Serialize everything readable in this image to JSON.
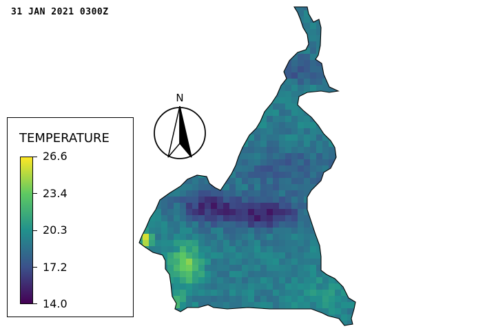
{
  "timestamp": "31 JAN 2021 0300Z",
  "legend": {
    "title": "TEMPERATURE",
    "ticks": [
      "26.6",
      "23.4",
      "20.3",
      "17.2",
      "14.0"
    ],
    "colormap": [
      "#440154",
      "#3b528b",
      "#21918c",
      "#5ec962",
      "#fde725"
    ]
  },
  "compass": {
    "label": "N",
    "icon": "north-arrow-icon"
  },
  "map": {
    "region": "Cameroon",
    "variable": "temperature",
    "vmin": 14.0,
    "vmax": 26.6
  }
}
